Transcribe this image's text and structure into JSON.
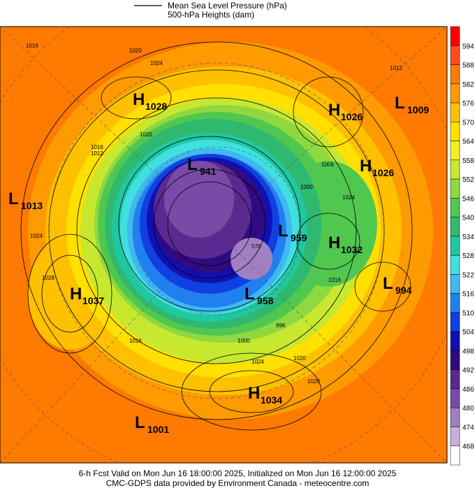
{
  "legend": {
    "items": [
      "Mean Sea Level Pressure (hPa)",
      "500-hPa Heights (dam)"
    ]
  },
  "colorbar": {
    "ticks": [
      594,
      588,
      582,
      576,
      570,
      564,
      558,
      552,
      546,
      540,
      534,
      528,
      522,
      516,
      510,
      504,
      498,
      492,
      486,
      480,
      474,
      468
    ],
    "colors": [
      "#ff0000",
      "#ff4a1a",
      "#ff7a00",
      "#ff9a00",
      "#ffc000",
      "#ffe000",
      "#f0f020",
      "#c8e830",
      "#90d840",
      "#50c850",
      "#30b870",
      "#20c8a0",
      "#40e0e0",
      "#40b8f0",
      "#2080f0",
      "#1040e0",
      "#1010b0",
      "#300a80",
      "#5a2a90",
      "#7a4aa8",
      "#a080c0",
      "#c8b0d8",
      "#ffffff"
    ]
  },
  "centers": [
    {
      "letter": "H",
      "value": "1028"
    },
    {
      "letter": "H",
      "value": "1026"
    },
    {
      "letter": "L",
      "value": "1009"
    },
    {
      "letter": "L",
      "value": "941"
    },
    {
      "letter": "H",
      "value": "1026"
    },
    {
      "letter": "L",
      "value": "1013"
    },
    {
      "letter": "L",
      "value": "959"
    },
    {
      "letter": "H",
      "value": "1032"
    },
    {
      "letter": "H",
      "value": "1037"
    },
    {
      "letter": "L",
      "value": "958"
    },
    {
      "letter": "L",
      "value": "994"
    },
    {
      "letter": "H",
      "value": "1034"
    },
    {
      "letter": "L",
      "value": "1001"
    }
  ],
  "contour_labels": [
    "1016",
    "1020",
    "1024",
    "1012",
    "1016",
    "1020",
    "1024",
    "1028",
    "1016",
    "1008",
    "1000",
    "1012",
    "1024",
    "1016",
    "1020",
    "1028",
    "1024",
    "996",
    "1000",
    "576"
  ],
  "footer": {
    "line1": "6-h Fcst Valid on Mon Jun 16 18:00:00 2025, Initialized on Mon Jun 16 12:00:00 2025",
    "line2": "CMC-GDPS data provided by Environment Canada - meteocentre.com"
  }
}
